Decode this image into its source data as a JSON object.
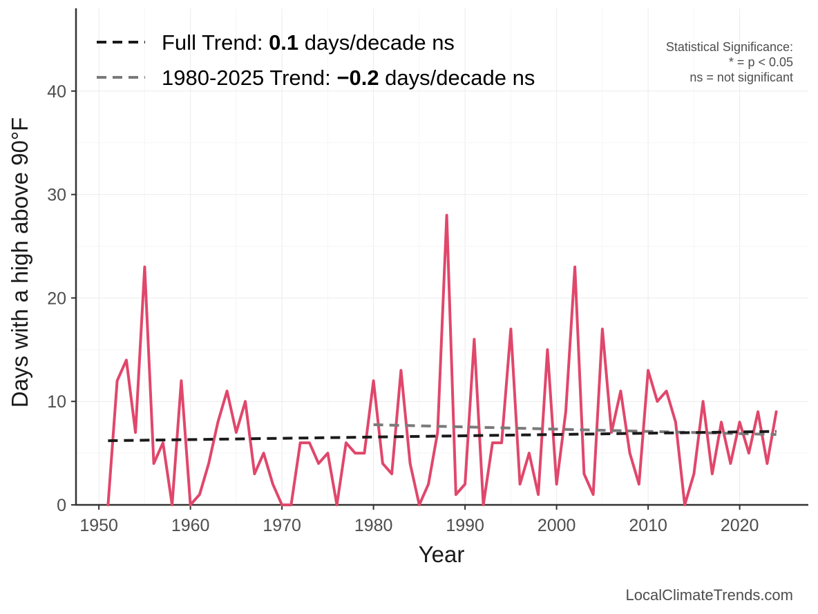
{
  "chart_data": {
    "type": "line",
    "xlabel": "Year",
    "ylabel": "Days with a high above 90°F",
    "xlim": [
      1947.5,
      2027.5
    ],
    "ylim": [
      0,
      48
    ],
    "x_ticks": [
      1950,
      1960,
      1970,
      1980,
      1990,
      2000,
      2010,
      2020
    ],
    "y_ticks": [
      0,
      10,
      20,
      30,
      40
    ],
    "grid": true,
    "colors": {
      "series": "#e0476b",
      "full_trend": "#1a1a1a",
      "recent_trend": "#7a7a7a"
    },
    "series": [
      {
        "x": [
          1951,
          1952,
          1953,
          1954,
          1955,
          1956,
          1957,
          1958,
          1959,
          1960,
          1961,
          1962,
          1963,
          1964,
          1965,
          1966,
          1967,
          1968,
          1969,
          1970,
          1971,
          1972,
          1973,
          1974,
          1975,
          1976,
          1977,
          1978,
          1979,
          1980,
          1981,
          1982,
          1983,
          1984,
          1985,
          1986,
          1987,
          1988,
          1989,
          1990,
          1991,
          1992,
          1993,
          1994,
          1995,
          1996,
          1997,
          1998,
          1999,
          2000,
          2001,
          2002,
          2003,
          2004,
          2005,
          2006,
          2007,
          2008,
          2009,
          2010,
          2011,
          2012,
          2013,
          2014,
          2015,
          2016,
          2017,
          2018,
          2019,
          2020,
          2021,
          2022,
          2023,
          2024
        ],
        "values": [
          0,
          12,
          14,
          7,
          23,
          4,
          6,
          0,
          12,
          0,
          1,
          4,
          8,
          11,
          7,
          10,
          3,
          5,
          2,
          0,
          0,
          6,
          6,
          4,
          5,
          0,
          6,
          5,
          5,
          12,
          4,
          3,
          13,
          4,
          0,
          2,
          7,
          28,
          1,
          2,
          16,
          0,
          6,
          6,
          17,
          2,
          5,
          1,
          15,
          2,
          9,
          23,
          3,
          1,
          17,
          7,
          11,
          5,
          2,
          13,
          10,
          11,
          8,
          0,
          3,
          10,
          3,
          8,
          4,
          8,
          5,
          9,
          4,
          9
        ]
      }
    ],
    "trends": [
      {
        "x": [
          1951,
          2024
        ],
        "values": [
          6.2,
          7.1
        ]
      },
      {
        "x": [
          1980,
          2024
        ],
        "values": [
          7.75,
          6.8
        ]
      }
    ],
    "legend": {
      "position": "top-left",
      "entries": [
        {
          "prefix": "Full Trend: ",
          "value": "0.1",
          "suffix": " days/decade ns"
        },
        {
          "prefix": "1980-2025 Trend: ",
          "value": "−0.2",
          "suffix": " days/decade ns"
        }
      ]
    },
    "annotation": {
      "lines": [
        "Statistical Significance:",
        "* = p < 0.05",
        "ns = not significant"
      ]
    }
  },
  "credit": "LocalClimateTrends.com"
}
